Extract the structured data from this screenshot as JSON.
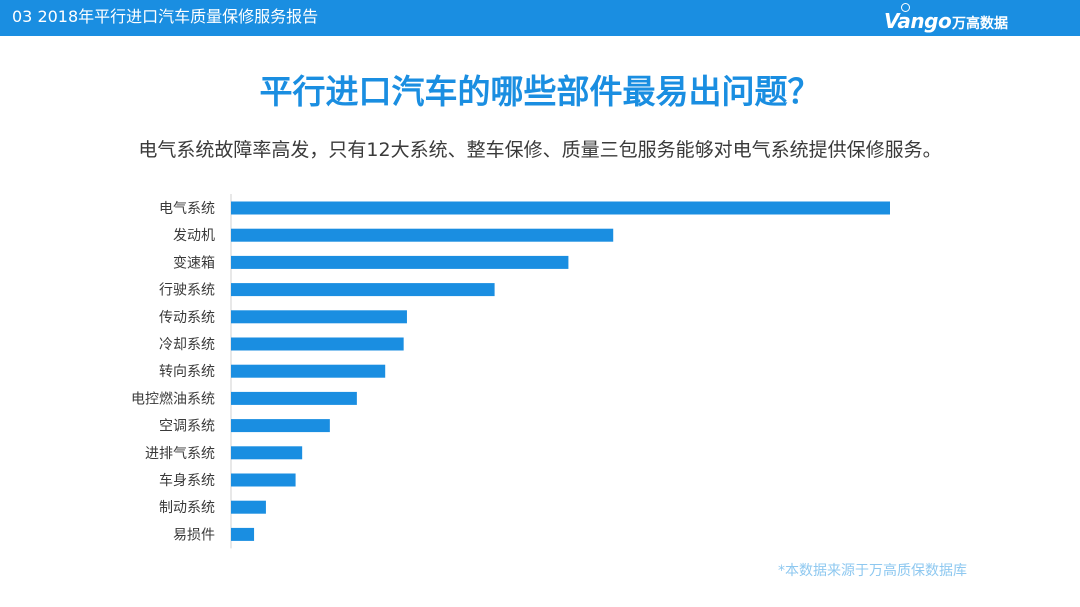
{
  "header": {
    "section_label": "03 2018年平行进口汽车质量保修服务报告",
    "logo_wordmark": "Vango",
    "logo_cn": "万高数据"
  },
  "title": "平行进口汽车的哪些部件最易出问题？",
  "subtitle": "电气系统故障率高发，只有12大系统、整车保修、质量三包服务能够对电气系统提供保修服务。",
  "footnote": "*本数据来源于万高质保数据库",
  "colors": {
    "accent": "#1a8ee1",
    "bar": "#1a8ee1",
    "text": "#3a3a3a"
  },
  "chart_data": {
    "type": "bar",
    "orientation": "horizontal",
    "title": "平行进口汽车的哪些部件最易出问题？",
    "xlabel": "",
    "ylabel": "",
    "categories": [
      "电气系统",
      "发动机",
      "变速箱",
      "行驶系统",
      "传动系统",
      "冷却系统",
      "转向系统",
      "电控燃油系统",
      "空调系统",
      "进排气系统",
      "车身系统",
      "制动系统",
      "易损件"
    ],
    "values": [
      100,
      58,
      51.2,
      40,
      26.7,
      26.2,
      23.4,
      19.1,
      15,
      10.8,
      9.8,
      5.3,
      3.5
    ],
    "xlim": [
      0,
      100
    ],
    "grid": false,
    "legend": "none"
  }
}
